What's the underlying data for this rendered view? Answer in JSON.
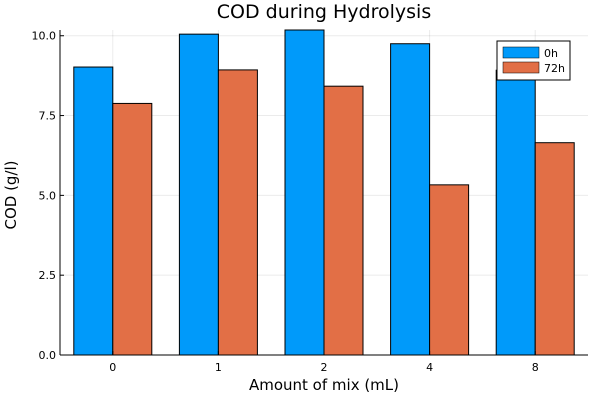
{
  "chart_data": {
    "type": "bar",
    "title": "COD during Hydrolysis",
    "xlabel": "Amount of mix (mL)",
    "ylabel": "COD (g/l)",
    "categories": [
      "0",
      "1",
      "2",
      "4",
      "8"
    ],
    "series": [
      {
        "name": "0h",
        "color": "#009AFA",
        "values": [
          9.02,
          10.05,
          10.18,
          9.75,
          8.92
        ]
      },
      {
        "name": "72h",
        "color": "#E26F46",
        "values": [
          7.88,
          8.93,
          8.42,
          5.33,
          6.65
        ]
      }
    ],
    "yticks": [
      "0.0",
      "2.5",
      "5.0",
      "7.5",
      "10.0"
    ],
    "ytick_values": [
      0,
      2.5,
      5.0,
      7.5,
      10.0
    ],
    "ylim": [
      0,
      10.18
    ],
    "grid": true,
    "legend_position": "top-right"
  }
}
